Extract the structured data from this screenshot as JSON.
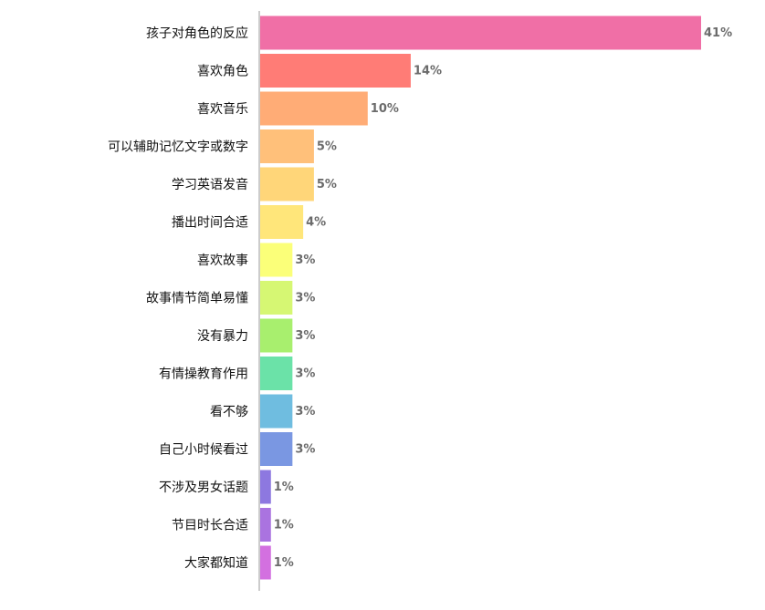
{
  "chart_data": {
    "type": "bar",
    "orientation": "horizontal",
    "unit": "%",
    "categories": [
      "孩子对角色的反应",
      "喜欢角色",
      "喜欢音乐",
      "可以辅助记忆文字或数字",
      "学习英语发音",
      "播出时间合适",
      "喜欢故事",
      "故事情节简单易懂",
      "没有暴力",
      "有情操教育作用",
      "看不够",
      "自己小时候看过",
      "不涉及男女话题",
      "节目时长合适",
      "大家都知道"
    ],
    "values": [
      41,
      14,
      10,
      5,
      5,
      4,
      3,
      3,
      3,
      3,
      3,
      3,
      1,
      1,
      1
    ],
    "value_labels": [
      "41%",
      "14%",
      "10%",
      "5%",
      "5%",
      "4%",
      "3%",
      "3%",
      "3%",
      "3%",
      "3%",
      "3%",
      "1%",
      "1%",
      "1%"
    ],
    "colors": [
      "#f06fa6",
      "#ff7c76",
      "#ffac76",
      "#ffc07a",
      "#ffd679",
      "#ffe67a",
      "#fbff79",
      "#d6f773",
      "#a8ef6e",
      "#6be2a8",
      "#6fbde0",
      "#7a97e2",
      "#8d78e0",
      "#aa73e0",
      "#d370e0"
    ],
    "xlim": [
      0,
      41
    ],
    "grid": false,
    "legend": false
  }
}
